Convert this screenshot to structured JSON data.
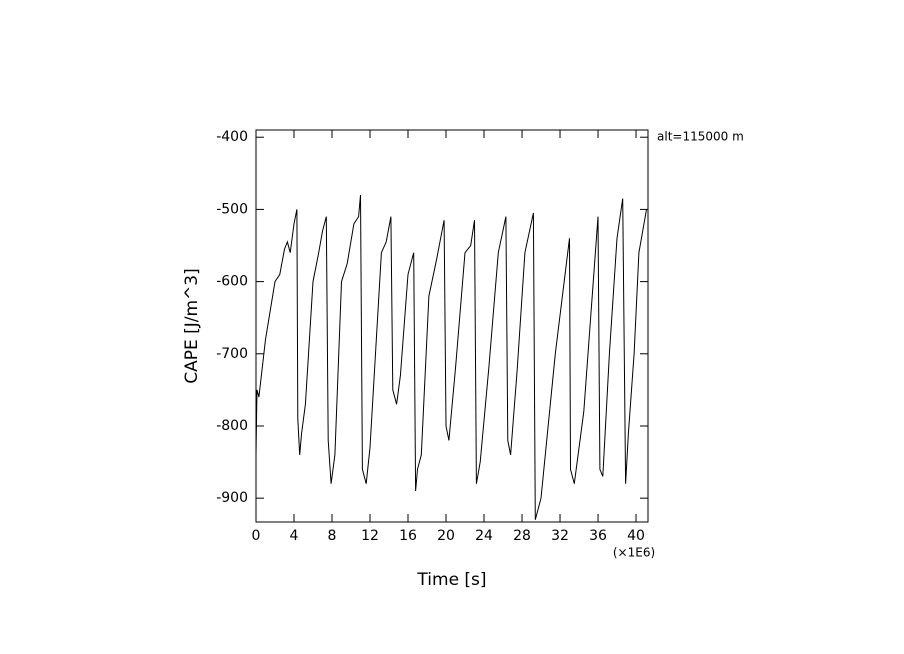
{
  "chart_data": {
    "type": "line",
    "xlabel": "Time [s]",
    "ylabel": "CAPE [J/m^3]",
    "annotation": "alt=115000 m",
    "x_multiplier": "(×1E6)",
    "color": "#000000",
    "xlim": [
      0,
      41.26
    ],
    "ylim": [
      -933,
      -390
    ],
    "xticks": [
      0,
      4,
      8,
      12,
      16,
      20,
      24,
      28,
      32,
      36,
      40
    ],
    "yticks": [
      -400,
      -500,
      -600,
      -700,
      -800,
      -900
    ],
    "x": [
      0,
      0.1,
      0.3,
      1,
      2,
      2.5,
      3,
      3.3,
      3.6,
      4,
      4.3,
      4.4,
      4.6,
      4.8,
      5.2,
      6,
      6.6,
      7,
      7.4,
      7.6,
      7.9,
      8.3,
      9,
      9.6,
      10.3,
      10.8,
      11,
      11.2,
      11.6,
      12,
      13.2,
      13.7,
      14.2,
      14.4,
      14.8,
      15.2,
      16,
      16.6,
      16.8,
      17,
      17.4,
      18.2,
      19,
      19.8,
      20,
      20.3,
      21,
      22,
      22.6,
      23,
      23.2,
      23.6,
      24.5,
      25.5,
      26.3,
      26.5,
      26.8,
      27.5,
      28.3,
      29.2,
      29.4,
      30,
      31.5,
      33,
      33.1,
      33.5,
      34.5,
      36,
      36.2,
      36.5,
      37.2,
      38,
      38.6,
      38.9,
      39.2,
      39.8,
      40.3,
      41.1
    ],
    "values": [
      -840,
      -750,
      -760,
      -680,
      -600,
      -590,
      -555,
      -545,
      -560,
      -520,
      -500,
      -790,
      -840,
      -810,
      -770,
      -600,
      -560,
      -530,
      -510,
      -820,
      -880,
      -840,
      -600,
      -575,
      -520,
      -510,
      -480,
      -860,
      -880,
      -830,
      -560,
      -545,
      -510,
      -750,
      -770,
      -730,
      -590,
      -560,
      -890,
      -860,
      -840,
      -620,
      -570,
      -515,
      -800,
      -820,
      -720,
      -560,
      -550,
      -515,
      -880,
      -850,
      -720,
      -560,
      -510,
      -820,
      -840,
      -720,
      -560,
      -505,
      -930,
      -900,
      -700,
      -540,
      -860,
      -880,
      -780,
      -510,
      -860,
      -870,
      -700,
      -540,
      -485,
      -880,
      -810,
      -700,
      -560,
      -500
    ]
  }
}
